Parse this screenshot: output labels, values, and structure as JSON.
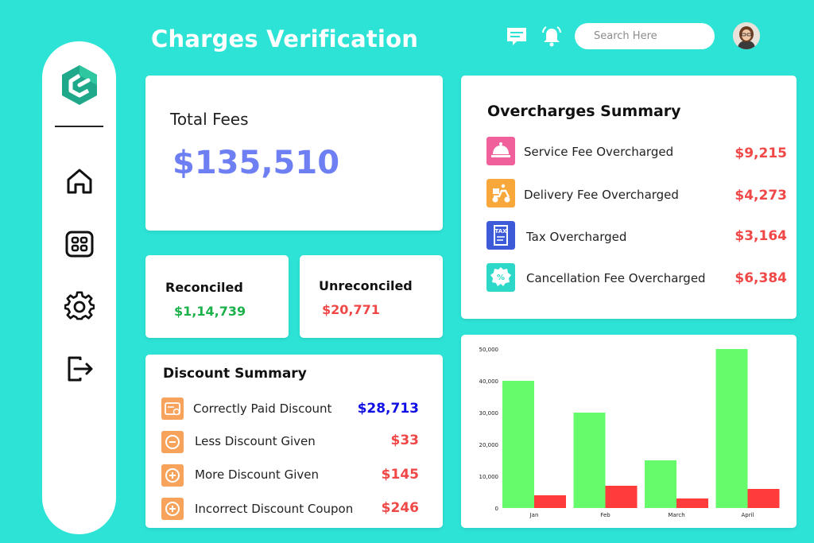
{
  "header": {
    "title": "Charges Verification",
    "search_placeholder": "Search Here"
  },
  "sidebar": {
    "items": [
      {
        "icon": "home-icon"
      },
      {
        "icon": "grid-icon"
      },
      {
        "icon": "gear-icon"
      },
      {
        "icon": "logout-icon"
      }
    ]
  },
  "total_fees": {
    "label": "Total Fees",
    "value": "$135,510"
  },
  "reconciled": {
    "label": "Reconciled",
    "value": "$1,14,739"
  },
  "unreconciled": {
    "label": "Unreconciled",
    "value": "$20,771"
  },
  "discount_summary": {
    "title": "Discount Summary",
    "rows": [
      {
        "label": "Correctly Paid Discount",
        "value": "$28,713",
        "icon": "receipt-check-icon"
      },
      {
        "label": "Less Discount Given",
        "value": "$33",
        "icon": "minus-circle-icon"
      },
      {
        "label": "More Discount Given",
        "value": "$145",
        "icon": "plus-circle-icon"
      },
      {
        "label": "Incorrect Discount Coupon",
        "value": "$246",
        "icon": "plus-circle-icon"
      }
    ]
  },
  "overcharges_summary": {
    "title": "Overcharges Summary",
    "rows": [
      {
        "label": "Service Fee Overcharged",
        "value": "$9,215",
        "icon": "service-bell-icon"
      },
      {
        "label": "Delivery Fee Overcharged",
        "value": "$4,273",
        "icon": "delivery-scooter-icon"
      },
      {
        "label": "Tax Overcharged",
        "value": "$3,164",
        "icon": "tax-document-icon"
      },
      {
        "label": "Cancellation Fee Overcharged",
        "value": "$6,384",
        "icon": "percent-badge-icon"
      }
    ]
  },
  "colors": {
    "background": "#2de3d6",
    "accent_total": "#6e7ff3",
    "positive": "#1cb14b",
    "negative": "#f04747",
    "blue_value": "#1010e6",
    "bar_green": "#66fb6a",
    "bar_red": "#ff3b3b"
  },
  "chart_data": {
    "type": "bar",
    "categories": [
      "Jan",
      "Feb",
      "March",
      "April"
    ],
    "series": [
      {
        "values": [
          40000,
          30000,
          15000,
          50000
        ],
        "color": "#66fb6a"
      },
      {
        "values": [
          4000,
          7000,
          3000,
          6000
        ],
        "color": "#ff3b3b"
      }
    ],
    "y_ticks": [
      "0",
      "10,000",
      "20,000",
      "30,000",
      "40,000",
      "50,000"
    ],
    "ylim": [
      0,
      50000
    ],
    "grid": false,
    "title": "",
    "xlabel": "",
    "ylabel": ""
  }
}
